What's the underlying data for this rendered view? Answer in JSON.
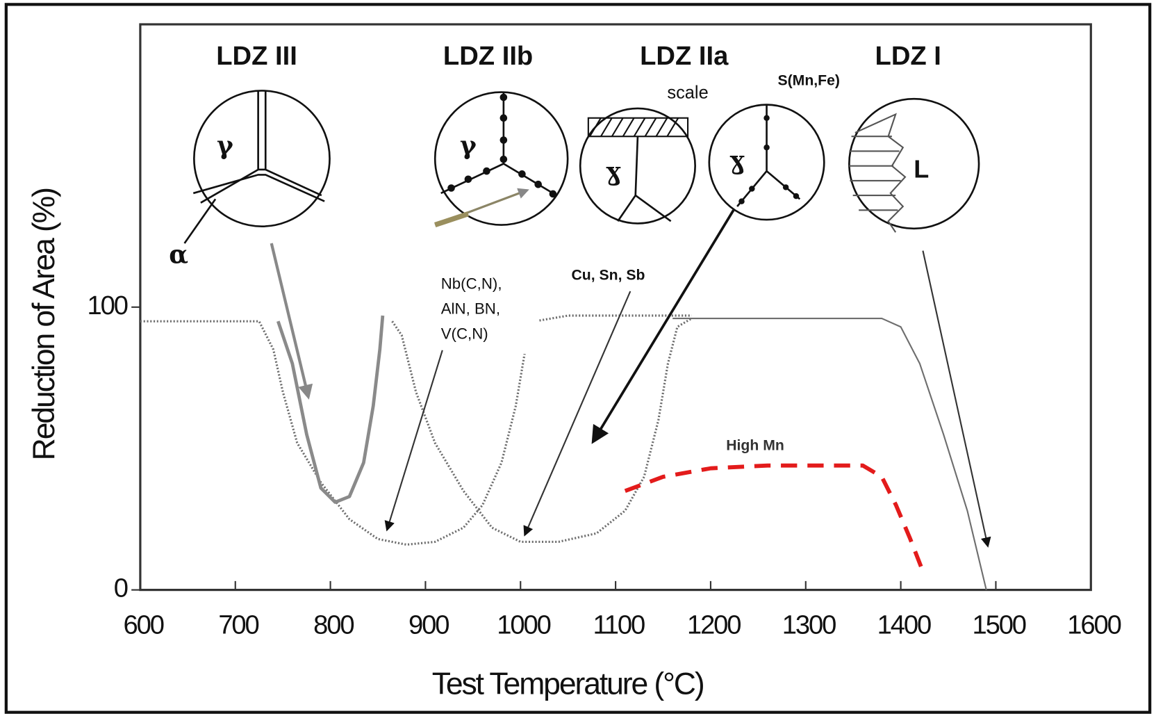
{
  "chart_data": {
    "type": "line",
    "xlabel": "Test Temperature (°C)",
    "ylabel": "Reduction of Area (%)",
    "xlim": [
      600,
      1600
    ],
    "ylim": [
      0,
      200
    ],
    "xticks": [
      600,
      700,
      800,
      900,
      1000,
      1100,
      1200,
      1300,
      1400,
      1500,
      1600
    ],
    "yticks": [
      0,
      100
    ],
    "series": [
      {
        "color": "#6e6e6e",
        "style": "dotted",
        "x": [
          600,
          725,
          740,
          750,
          765,
          790,
          820,
          850,
          880,
          910,
          940,
          960,
          980,
          995,
          1005,
          1015,
          1050,
          1180
        ],
        "values": [
          95,
          95,
          85,
          70,
          52,
          38,
          25,
          18,
          16,
          17,
          22,
          30,
          45,
          65,
          85,
          95,
          97,
          97
        ]
      },
      {
        "color": "#6e6e6e",
        "style": "dotted",
        "x": [
          865,
          875,
          890,
          910,
          940,
          970,
          1000,
          1040,
          1080,
          1110,
          1130,
          1145,
          1155,
          1165,
          1180
        ],
        "values": [
          95,
          90,
          70,
          52,
          35,
          22,
          17,
          17,
          20,
          28,
          40,
          60,
          80,
          93,
          96
        ]
      },
      {
        "color": "#6e6e6e",
        "style": "solid",
        "x": [
          1160,
          1380,
          1400,
          1420,
          1445,
          1470,
          1490
        ],
        "values": [
          96,
          96,
          93,
          80,
          55,
          28,
          0
        ]
      },
      {
        "color": "#8a8a8a",
        "style": "thick",
        "x": [
          745,
          760,
          775,
          790,
          805,
          820,
          835,
          845,
          852,
          855
        ],
        "values": [
          95,
          80,
          55,
          36,
          31,
          33,
          45,
          65,
          85,
          97
        ]
      },
      {
        "name": "High Mn",
        "color": "#e31b1b",
        "style": "dashed",
        "x": [
          1110,
          1150,
          1200,
          1260,
          1360,
          1380,
          1395,
          1410,
          1425
        ],
        "values": [
          35,
          40,
          43,
          44,
          44,
          40,
          30,
          18,
          5
        ]
      }
    ],
    "zone_labels": [
      "LDZ III",
      "LDZ IIb",
      "LDZ IIa",
      "LDZ I"
    ],
    "phase_labels": [
      "γ",
      "γ",
      "ɣ",
      "ɣ",
      "L",
      "α"
    ],
    "notes": [
      "scale",
      "S(Mn,Fe)",
      "Cu, Sn, Sb"
    ],
    "precipitates": [
      "Nb(C,N),",
      "AlN, BN,",
      "V(C,N)"
    ]
  }
}
